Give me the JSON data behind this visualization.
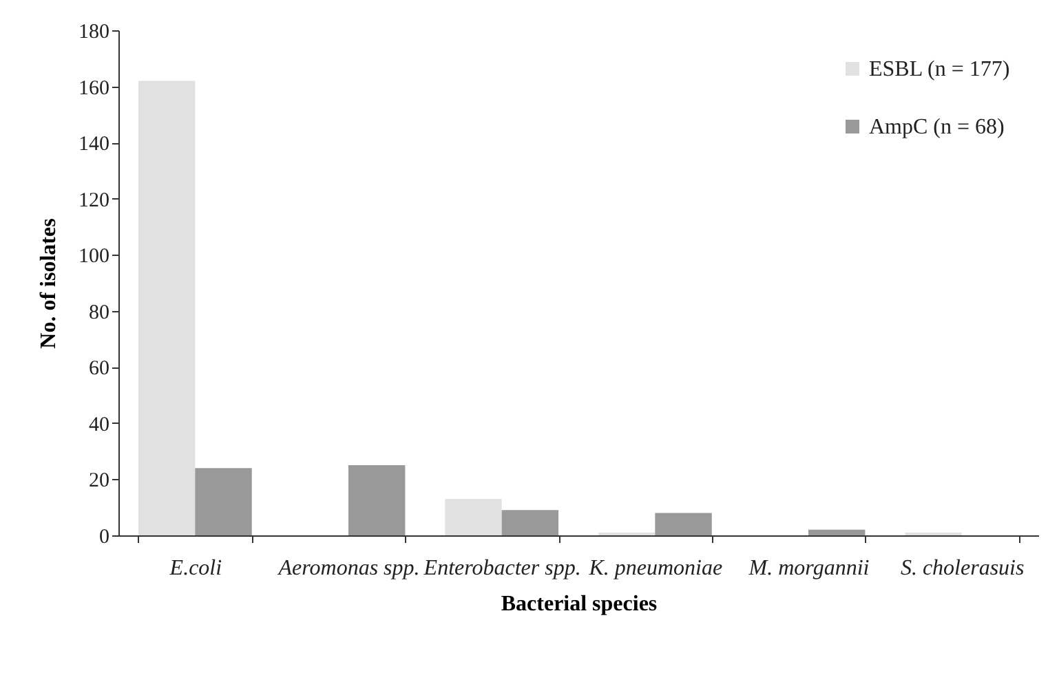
{
  "chart_data": {
    "type": "bar",
    "xlabel": "Bacterial species",
    "ylabel": "No. of isolates",
    "categories": [
      "E.coli",
      "Aeromonas spp.",
      "Enterobacter spp.",
      "K. pneumoniae",
      "M. morgannii",
      "S. cholerasuis"
    ],
    "series": [
      {
        "name": "ESBL (n = 177)",
        "color": "#e1e1e1",
        "values": [
          162,
          0,
          13,
          1,
          0,
          1
        ]
      },
      {
        "name": "AmpC (n = 68)",
        "color": "#999999",
        "values": [
          24,
          25,
          9,
          8,
          2,
          0
        ]
      }
    ],
    "ylim": [
      0,
      180
    ],
    "yticks": [
      0,
      20,
      40,
      60,
      80,
      100,
      120,
      140,
      160,
      180
    ],
    "grid": false,
    "legend": "top right"
  }
}
